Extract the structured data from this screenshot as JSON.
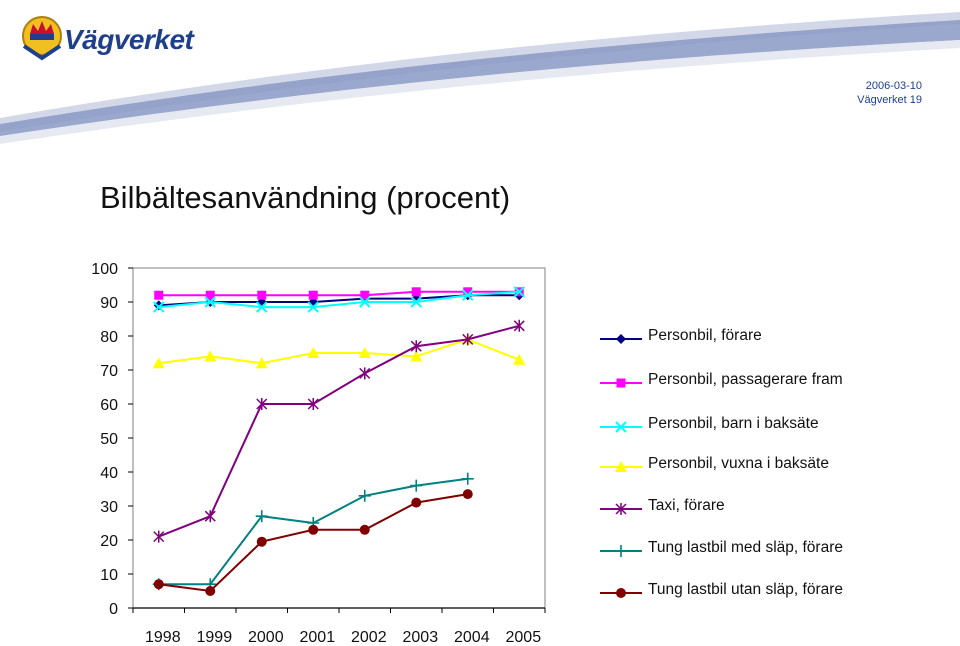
{
  "header": {
    "brand": "Vägverket",
    "date": "2006-03-10",
    "source": "Vägverket",
    "page": "19"
  },
  "title": "Bilbältesanvändning (procent)",
  "chart_data": {
    "type": "line",
    "x": [
      "1998",
      "1999",
      "2000",
      "2001",
      "2002",
      "2003",
      "2004",
      "2005"
    ],
    "ylim": [
      0,
      100
    ],
    "yticks": [
      0,
      10,
      20,
      30,
      40,
      50,
      60,
      70,
      80,
      90,
      100
    ],
    "legend_position": "right",
    "grid": false,
    "series": [
      {
        "name": "Personbil, förare",
        "color": "#000080",
        "marker": "diamond",
        "values": [
          89,
          90,
          90,
          90,
          91,
          91,
          92,
          92
        ]
      },
      {
        "name": "Personbil, passagerare fram",
        "color": "#ff00ff",
        "marker": "square",
        "values": [
          92,
          92,
          92,
          92,
          92,
          93,
          93,
          93
        ]
      },
      {
        "name": "Personbil, barn i baksäte",
        "color": "#00ffff",
        "marker": "x",
        "values": [
          88.5,
          90,
          88.5,
          88.5,
          90,
          90,
          92,
          93
        ]
      },
      {
        "name": "Personbil, vuxna i baksäte",
        "color": "#ffff00",
        "marker": "triangle",
        "values": [
          72,
          74,
          72,
          75,
          75,
          74,
          79,
          73
        ]
      },
      {
        "name": "Taxi, förare",
        "color": "#800080",
        "marker": "asterisk",
        "values": [
          21,
          27,
          60,
          60,
          69,
          77,
          79,
          83
        ]
      },
      {
        "name": "Tung lastbil med släp, förare",
        "color": "#008080",
        "marker": "plus",
        "values": [
          7,
          7,
          27,
          25,
          33,
          36,
          38,
          null
        ]
      },
      {
        "name": "Tung lastbil utan släp, förare",
        "color": "#800000",
        "marker": "circle",
        "values": [
          7,
          5,
          19.5,
          23,
          23,
          31,
          33.5,
          null
        ]
      }
    ]
  }
}
